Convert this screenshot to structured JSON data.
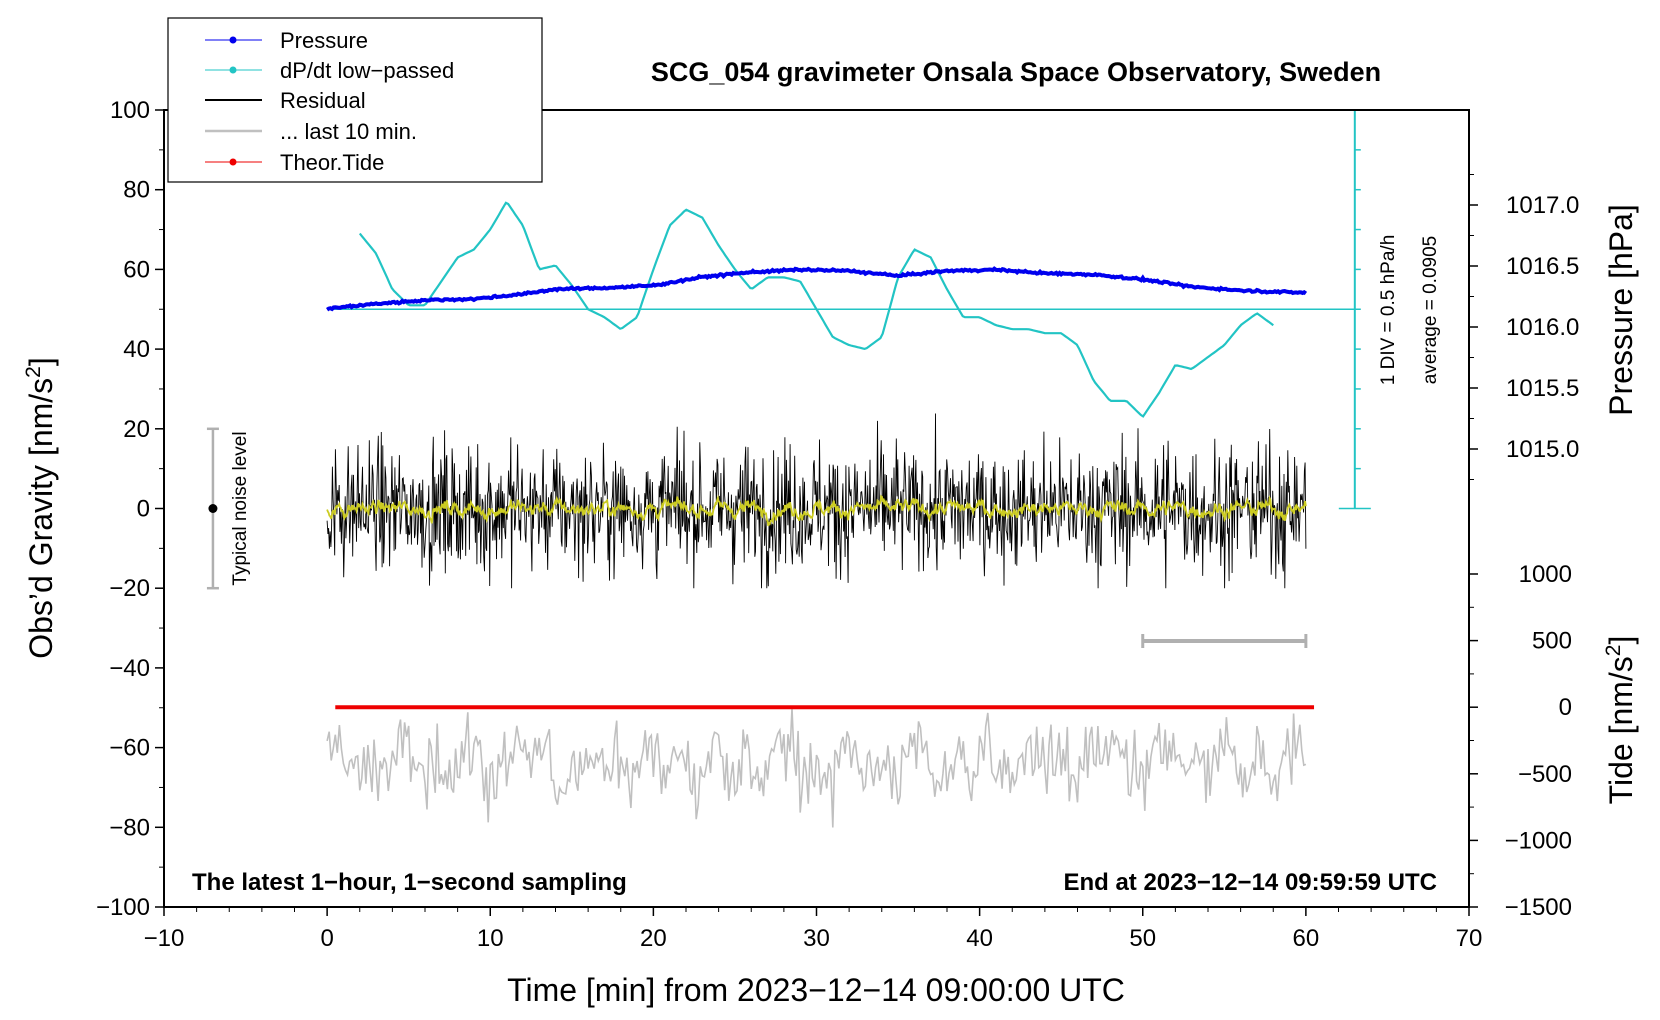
{
  "chart_data": {
    "type": "line",
    "title": "SCG_054 gravimeter Onsala Space Observatory, Sweden",
    "xlabel": "Time [min] from 2023−12−14 09:00:00 UTC",
    "ylabel_left": "Obs’d Gravity [nm/s",
    "ylabel_right_pressure": "Pressure [hPa]",
    "ylabel_right_tide": "Tide [nm/s",
    "unit_superscript": "2",
    "unit_close": "]",
    "xlim": [
      -10,
      70
    ],
    "ylim": [
      -100,
      100
    ],
    "pressure_lim": [
      1014.5,
      1017.5
    ],
    "tide_lim": [
      -1500,
      1000
    ],
    "x_ticks": [
      "−10",
      "0",
      "10",
      "20",
      "30",
      "40",
      "50",
      "60",
      "70"
    ],
    "x_tick_values": [
      -10,
      0,
      10,
      20,
      30,
      40,
      50,
      60,
      70
    ],
    "y_ticks": [
      "100",
      "80",
      "60",
      "40",
      "20",
      "0",
      "−20",
      "−40",
      "−60",
      "−80",
      "−100"
    ],
    "y_tick_values": [
      100,
      80,
      60,
      40,
      20,
      0,
      -20,
      -40,
      -60,
      -80,
      -100
    ],
    "pressure_ticks": [
      "1017.0",
      "1016.5",
      "1016.0",
      "1015.5",
      "1015.0"
    ],
    "pressure_tick_values": [
      1017.0,
      1016.5,
      1016.0,
      1015.5,
      1015.0
    ],
    "tide_ticks": [
      "1000",
      "500",
      "0",
      "−500",
      "−1000",
      "−1500"
    ],
    "tide_tick_values": [
      1000,
      500,
      0,
      -500,
      -1000,
      -1500
    ],
    "legend": [
      "Pressure",
      "dP/dt low−passed",
      "Residual",
      "... last 10 min.",
      "Theor.Tide"
    ],
    "legend_position": "top-left",
    "colors": {
      "pressure": "#0000ee",
      "dpdt": "#22c4c4",
      "residual": "#000000",
      "last10": "#c0c0c0",
      "tide": "#ee0000",
      "residual_smooth": "#cccc22",
      "noise_bar": "#b0b0b0"
    },
    "series": [
      {
        "name": "Pressure",
        "units": "hPa",
        "x": [
          0,
          3,
          6,
          9,
          12,
          14,
          17,
          20,
          23,
          26,
          29,
          32,
          35,
          38,
          41,
          44,
          47,
          50,
          53,
          56,
          60
        ],
        "values": [
          1016.15,
          1016.19,
          1016.22,
          1016.23,
          1016.27,
          1016.31,
          1016.32,
          1016.34,
          1016.41,
          1016.45,
          1016.47,
          1016.46,
          1016.42,
          1016.46,
          1016.47,
          1016.44,
          1016.43,
          1016.39,
          1016.33,
          1016.3,
          1016.28
        ]
      },
      {
        "name": "dP/dt low−passed",
        "units": "divisions (1 DIV = 0.5 hPa/h), zero line at 50",
        "x": [
          2,
          3,
          4,
          5,
          6,
          7,
          8,
          9,
          10,
          11,
          12,
          13,
          14,
          15,
          16,
          17,
          18,
          19,
          20,
          21,
          22,
          23,
          24,
          25,
          26,
          27,
          28,
          29,
          30,
          31,
          32,
          33,
          34,
          35,
          36,
          37,
          38,
          39,
          40,
          41,
          42,
          43,
          44,
          45,
          46,
          47,
          48,
          49,
          50,
          51,
          52,
          53,
          54,
          55,
          56,
          57,
          58
        ],
        "values": [
          69,
          64,
          55,
          51,
          51,
          57,
          63,
          65,
          70,
          77,
          71,
          60,
          61,
          56,
          50,
          48,
          45,
          48,
          60,
          71,
          75,
          73,
          66,
          60,
          55,
          58,
          58,
          57,
          50,
          43,
          41,
          40,
          43,
          58,
          65,
          63,
          55,
          48,
          48,
          46,
          45,
          45,
          44,
          44,
          41,
          32,
          27,
          27,
          23,
          29,
          36,
          35,
          38,
          41,
          46,
          49,
          46
        ]
      },
      {
        "name": "Theor.Tide",
        "units": "nm/s2",
        "x": [
          0.5,
          60.5
        ],
        "values": [
          0,
          0
        ]
      }
    ],
    "residual": {
      "approx_std": 7,
      "approx_range": [
        -20,
        25
      ],
      "x_range": [
        0,
        60
      ]
    },
    "last10_window": [
      50,
      60
    ],
    "dpdt_scale_label": "1 DIV = 0.5 hPa/h",
    "dpdt_average_label": "average = 0.0905",
    "noise_label": "Typical noise level",
    "noise_range": [
      -20,
      20
    ],
    "noise_x": -7,
    "footer_left": "The latest 1−hour, 1−second sampling",
    "footer_right": "End at 2023−12−14 09:59:59 UTC"
  }
}
